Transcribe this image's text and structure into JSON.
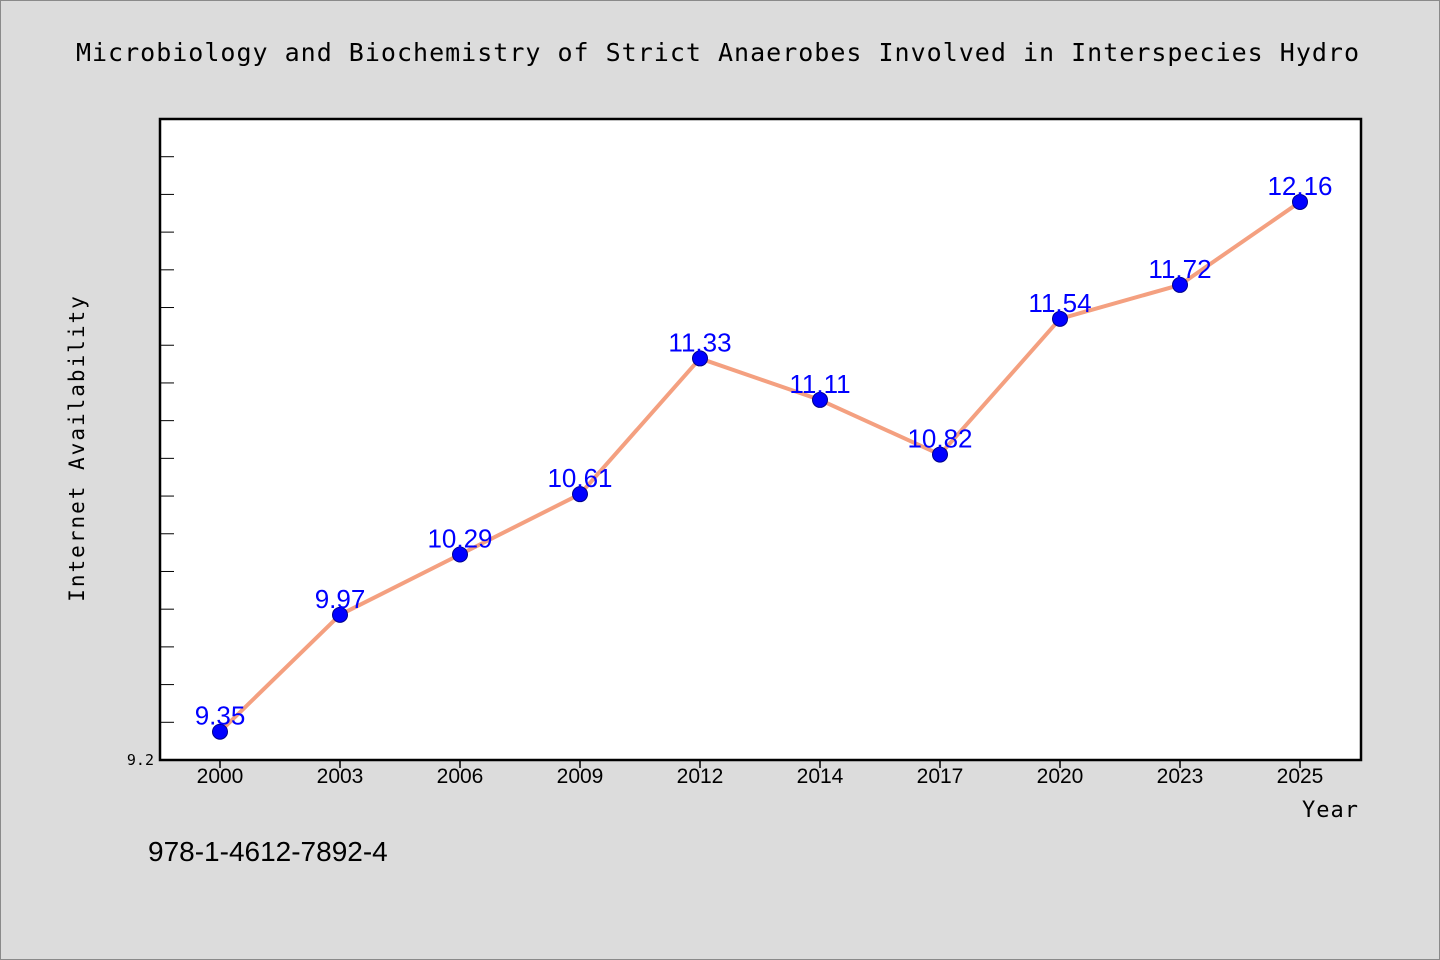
{
  "chart_data": {
    "type": "line",
    "title": "Microbiology and Biochemistry of Strict Anaerobes Involved in Interspecies Hydro",
    "xlabel": "Year",
    "ylabel": "Internet Availability",
    "categories": [
      "2000",
      "2003",
      "2006",
      "2009",
      "2012",
      "2014",
      "2017",
      "2020",
      "2023",
      "2025"
    ],
    "series": [
      {
        "values": [
          9.35,
          9.97,
          10.29,
          10.61,
          11.33,
          11.11,
          10.82,
          11.54,
          11.72,
          12.16
        ]
      }
    ],
    "data_labels": [
      "9.35",
      "9.97",
      "10.29",
      "10.61",
      "11.33",
      "11.11",
      "10.82",
      "11.54",
      "11.72",
      "12.16"
    ],
    "ylim": [
      9.2,
      12.6
    ],
    "y_tick_labels": [
      {
        "value": 9.2,
        "label": "9.2"
      }
    ],
    "y_minor_tick_step": 0.2,
    "grid": false,
    "colors": {
      "line": "#f4a080",
      "marker": "#0000ff",
      "marker_edge": "#00008b",
      "data_label": "#0000ff",
      "background": "#dcdcdc",
      "plot_background": "#ffffff"
    }
  },
  "footer_code": "978-1-4612-7892-4"
}
